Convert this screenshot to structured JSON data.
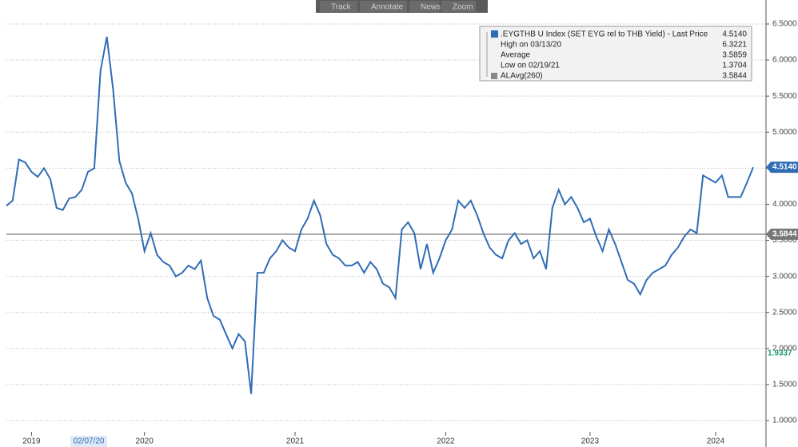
{
  "chart_data": {
    "type": "line",
    "toolbar": [
      "Track",
      "Annotate",
      "News",
      "Zoom"
    ],
    "categories": [
      null,
      null,
      null,
      null,
      "2019",
      null,
      null,
      null,
      null,
      null,
      null,
      null,
      null,
      "02/07/20",
      null,
      null,
      null,
      null,
      null,
      null,
      null,
      null,
      "2020",
      null,
      null,
      null,
      null,
      null,
      null,
      null,
      null,
      null,
      null,
      null,
      null,
      null,
      null,
      null,
      null,
      null,
      null,
      null,
      null,
      null,
      null,
      null,
      "2021",
      null,
      null,
      null,
      null,
      null,
      null,
      null,
      null,
      null,
      null,
      null,
      null,
      null,
      null,
      null,
      null,
      null,
      null,
      null,
      null,
      null,
      null,
      null,
      "2022",
      null,
      null,
      null,
      null,
      null,
      null,
      null,
      null,
      null,
      null,
      null,
      null,
      null,
      null,
      null,
      null,
      null,
      null,
      null,
      null,
      null,
      null,
      "2023",
      null,
      null,
      null,
      null,
      null,
      null,
      null,
      null,
      null,
      null,
      null,
      null,
      null,
      null,
      null,
      null,
      null,
      null,
      null,
      "2024",
      null,
      null,
      null,
      null,
      null,
      null
    ],
    "series": [
      {
        "name": ".EYGTHB U Index (SET EYG rel to THB Yield) - Last Price",
        "color": "#2f6db5",
        "values": [
          3.98,
          4.05,
          4.62,
          4.58,
          4.45,
          4.38,
          4.5,
          4.35,
          3.95,
          3.92,
          4.08,
          4.1,
          4.2,
          4.45,
          4.5,
          5.85,
          6.3221,
          5.6,
          4.6,
          4.3,
          4.15,
          3.8,
          3.35,
          3.6,
          3.3,
          3.2,
          3.15,
          3.0,
          3.05,
          3.15,
          3.1,
          3.22,
          2.7,
          2.45,
          2.4,
          2.2,
          2.0,
          2.2,
          2.1,
          1.3704,
          3.05,
          3.05,
          3.25,
          3.35,
          3.5,
          3.4,
          3.35,
          3.65,
          3.8,
          4.05,
          3.85,
          3.45,
          3.3,
          3.25,
          3.15,
          3.15,
          3.2,
          3.05,
          3.2,
          3.1,
          2.9,
          2.85,
          2.7,
          3.65,
          3.75,
          3.6,
          3.1,
          3.45,
          3.05,
          3.25,
          3.5,
          3.65,
          4.05,
          3.95,
          4.05,
          3.85,
          3.6,
          3.4,
          3.3,
          3.25,
          3.5,
          3.6,
          3.45,
          3.5,
          3.25,
          3.35,
          3.1,
          3.95,
          4.2,
          4.0,
          4.1,
          3.95,
          3.75,
          3.8,
          3.55,
          3.35,
          3.65,
          3.45,
          3.2,
          2.95,
          2.9,
          2.75,
          2.95,
          3.05,
          3.1,
          3.15,
          3.3,
          3.4,
          3.55,
          3.65,
          3.6,
          4.4,
          4.35,
          4.3,
          4.4,
          4.1,
          4.1,
          4.1,
          4.3,
          4.514
        ]
      }
    ],
    "reference_line": {
      "value": 3.5844,
      "color": "#888888"
    },
    "legend": [
      {
        "label": ".EYGTHB U Index (SET EYG rel to THB Yield) - Last Price",
        "value": "4.5140"
      },
      {
        "label": "High on 03/13/20",
        "value": "6.3221"
      },
      {
        "label": "Average",
        "value": "3.5859"
      },
      {
        "label": "Low on 02/19/21",
        "value": "1.3704"
      },
      {
        "label": "ALAvg(260)",
        "value": "3.5844"
      }
    ],
    "badges": [
      {
        "value": 4.514,
        "label": "4.5140",
        "color": "#2f6db5"
      },
      {
        "value": 3.5844,
        "label": "3.5844",
        "color": "#777777"
      },
      {
        "value": 1.9337,
        "label": "1.9337",
        "color": "#1f9a6a"
      }
    ],
    "ylim": [
      1,
      6.5
    ],
    "yticks": [
      {
        "value": 1,
        "label": "1.0000"
      },
      {
        "value": 1.5,
        "label": "1.5000"
      },
      {
        "value": 2,
        "label": "2.0000"
      },
      {
        "value": 2.5,
        "label": "2.5000"
      },
      {
        "value": 3,
        "label": "3.0000"
      },
      {
        "value": 3.5,
        "label": "3.5000"
      },
      {
        "value": 4,
        "label": "4.0000"
      },
      {
        "value": 4.5,
        "label": "4.5000"
      },
      {
        "value": 5,
        "label": "5.0000"
      },
      {
        "value": 5.5,
        "label": "5.5000"
      },
      {
        "value": 6,
        "label": "6.0000"
      },
      {
        "value": 6.5,
        "label": "6.5000"
      }
    ],
    "grid": true
  }
}
